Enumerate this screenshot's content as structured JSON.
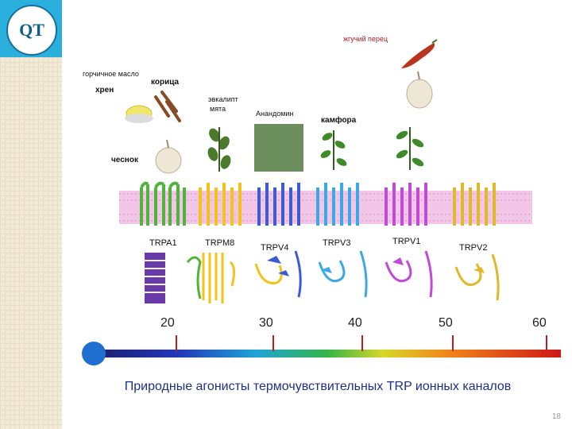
{
  "logo": {
    "text": "QT"
  },
  "agonists": {
    "hot_pepper": "жгучий перец",
    "mustard_oil": "горчичное масло",
    "cinnamon": "корица",
    "horseradish": "хрен",
    "eucalyptus": "эвкалипт",
    "mint": "мята",
    "anandamide": "Анандомин",
    "camphor": "камфора",
    "garlic": "чеснок"
  },
  "channels": [
    {
      "label": "TRPA1",
      "color": "#4fb53a"
    },
    {
      "label": "TRPM8",
      "color": "#f2c318"
    },
    {
      "label": "TRPV4",
      "color": "#3b5bd6"
    },
    {
      "label": "TRPV3",
      "color": "#3aa9e6"
    },
    {
      "label": "TRPV1",
      "color": "#c14bd8"
    },
    {
      "label": "TRPV2",
      "color": "#e0b82a"
    }
  ],
  "scale": {
    "ticks": [
      "20",
      "30",
      "40",
      "50",
      "60"
    ]
  },
  "caption": "Природные агонисты термочувствительных TRP ионных каналов",
  "page_number": "18"
}
